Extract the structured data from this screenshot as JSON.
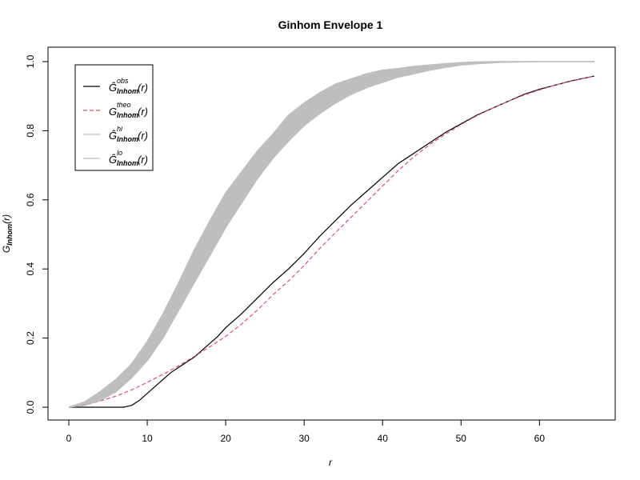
{
  "chart_data": {
    "type": "line",
    "title": "Ginhom Envelope 1",
    "xlabel": "r",
    "ylabel": "G_Inhom(r)",
    "xlim": [
      0,
      67
    ],
    "ylim": [
      0,
      1
    ],
    "xticks": [
      "0",
      "10",
      "20",
      "30",
      "40",
      "50",
      "60"
    ],
    "yticks": [
      "0.0",
      "0.2",
      "0.4",
      "0.6",
      "0.8",
      "1.0"
    ],
    "legend_position": "top-left",
    "envelope_color": "#bebebe",
    "series": [
      {
        "name": "obs",
        "label_base": "Ĝ",
        "label_sup": "obs",
        "label_sub": "Inhom",
        "color": "#000000",
        "style": "solid",
        "x": [
          0,
          5,
          7,
          8,
          9,
          10,
          11,
          12,
          13,
          14,
          15,
          16,
          17,
          18,
          19,
          20,
          22,
          24,
          26,
          28,
          30,
          32,
          34,
          36,
          38,
          40,
          42,
          44,
          46,
          48,
          50,
          52,
          54,
          56,
          58,
          60,
          62,
          64,
          67
        ],
        "y": [
          0,
          0,
          0,
          0.005,
          0.02,
          0.04,
          0.06,
          0.08,
          0.1,
          0.115,
          0.13,
          0.145,
          0.165,
          0.185,
          0.205,
          0.23,
          0.27,
          0.315,
          0.36,
          0.4,
          0.445,
          0.495,
          0.54,
          0.585,
          0.625,
          0.665,
          0.705,
          0.735,
          0.765,
          0.795,
          0.82,
          0.845,
          0.865,
          0.885,
          0.905,
          0.92,
          0.932,
          0.944,
          0.958
        ]
      },
      {
        "name": "theo",
        "label_base": "G",
        "label_sup": "theo",
        "label_sub": "Inhom",
        "color": "#df536b",
        "style": "dashed",
        "x": [
          0,
          2,
          4,
          6,
          8,
          10,
          12,
          14,
          16,
          18,
          20,
          22,
          24,
          26,
          28,
          30,
          32,
          34,
          36,
          38,
          40,
          42,
          44,
          46,
          48,
          50,
          52,
          54,
          56,
          58,
          60,
          62,
          64,
          67
        ],
        "y": [
          0,
          0.006,
          0.018,
          0.032,
          0.05,
          0.072,
          0.095,
          0.12,
          0.147,
          0.175,
          0.205,
          0.24,
          0.28,
          0.325,
          0.365,
          0.41,
          0.46,
          0.505,
          0.55,
          0.595,
          0.64,
          0.685,
          0.725,
          0.76,
          0.79,
          0.818,
          0.843,
          0.865,
          0.885,
          0.903,
          0.918,
          0.932,
          0.943,
          0.958
        ]
      },
      {
        "name": "hi",
        "label_base": "Ĝ",
        "label_sup": "hi",
        "label_sub": "Inhom",
        "color": "#bebebe",
        "style": "solid",
        "x": [
          0,
          2,
          4,
          6,
          8,
          10,
          12,
          14,
          16,
          18,
          20,
          22,
          24,
          26,
          28,
          30,
          32,
          34,
          36,
          38,
          40,
          42,
          44,
          46,
          48,
          50,
          52,
          55,
          60,
          67
        ],
        "y": [
          0,
          0.015,
          0.045,
          0.08,
          0.125,
          0.19,
          0.27,
          0.36,
          0.455,
          0.54,
          0.62,
          0.68,
          0.74,
          0.79,
          0.845,
          0.88,
          0.91,
          0.935,
          0.95,
          0.965,
          0.975,
          0.98,
          0.986,
          0.99,
          0.994,
          0.997,
          0.999,
          1.0,
          1.0,
          1.0
        ]
      },
      {
        "name": "lo",
        "label_base": "Ĝ",
        "label_sup": "lo",
        "label_sub": "Inhom",
        "color": "#bebebe",
        "style": "solid",
        "x": [
          0,
          2,
          4,
          6,
          8,
          10,
          12,
          14,
          16,
          18,
          20,
          22,
          24,
          26,
          28,
          30,
          32,
          34,
          36,
          38,
          40,
          42,
          44,
          46,
          48,
          50,
          52,
          55,
          60,
          67
        ],
        "y": [
          0,
          0.005,
          0.02,
          0.045,
          0.085,
          0.135,
          0.2,
          0.28,
          0.36,
          0.44,
          0.52,
          0.59,
          0.66,
          0.72,
          0.77,
          0.815,
          0.85,
          0.88,
          0.905,
          0.925,
          0.94,
          0.955,
          0.965,
          0.975,
          0.983,
          0.99,
          0.994,
          0.998,
          1.0,
          1.0
        ]
      }
    ]
  }
}
